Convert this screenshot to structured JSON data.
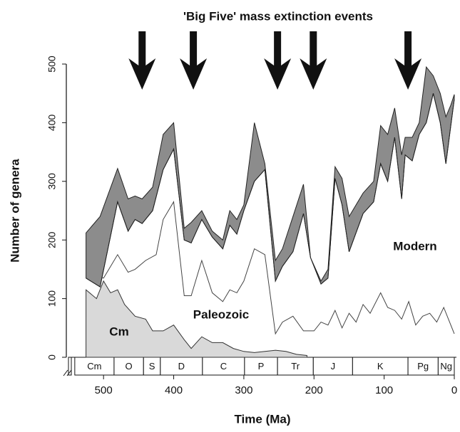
{
  "chart_data": {
    "type": "line",
    "title": "'Big Five' mass extinction events",
    "x_label": "Time (Ma)",
    "y_label": "Number of genera",
    "xlim": [
      550,
      0
    ],
    "ylim": [
      0,
      500
    ],
    "xticks": [
      500,
      400,
      300,
      200,
      100,
      0
    ],
    "yticks": [
      0,
      100,
      200,
      300,
      400,
      500
    ],
    "extinction_events": [
      445,
      372,
      252,
      201,
      66
    ],
    "periods": [
      {
        "name": "Cm",
        "start": 541,
        "end": 485
      },
      {
        "name": "O",
        "start": 485,
        "end": 443
      },
      {
        "name": "S",
        "start": 443,
        "end": 419
      },
      {
        "name": "D",
        "start": 419,
        "end": 359
      },
      {
        "name": "C",
        "start": 359,
        "end": 299
      },
      {
        "name": "P",
        "start": 299,
        "end": 252
      },
      {
        "name": "Tr",
        "start": 252,
        "end": 201
      },
      {
        "name": "J",
        "start": 201,
        "end": 145
      },
      {
        "name": "K",
        "start": 145,
        "end": 66
      },
      {
        "name": "Pg",
        "start": 66,
        "end": 23
      },
      {
        "name": "Ng",
        "start": 23,
        "end": 0
      }
    ],
    "series": [
      {
        "name": "Cm",
        "color": "#d9d9d9",
        "x": [
          525,
          510,
          500,
          490,
          480,
          470,
          455,
          440,
          430,
          415,
          400,
          385,
          375,
          360,
          345,
          330,
          315,
          300,
          285,
          270,
          255,
          240,
          225,
          210
        ],
        "values": [
          115,
          100,
          130,
          110,
          115,
          90,
          70,
          65,
          45,
          45,
          55,
          30,
          15,
          35,
          25,
          25,
          15,
          10,
          8,
          10,
          12,
          10,
          5,
          3
        ]
      },
      {
        "name": "Paleozoic",
        "color": "#444444",
        "x": [
          525,
          510,
          500,
          480,
          465,
          455,
          440,
          425,
          415,
          400,
          385,
          375,
          360,
          345,
          330,
          320,
          310,
          300,
          285,
          270,
          255,
          245,
          230,
          215,
          200,
          190,
          180,
          170,
          160,
          150,
          140,
          130,
          120,
          105,
          95,
          85,
          75,
          65,
          55,
          45,
          35,
          25,
          15,
          0
        ],
        "values": [
          135,
          140,
          135,
          175,
          145,
          150,
          165,
          175,
          235,
          265,
          105,
          105,
          165,
          110,
          95,
          115,
          110,
          130,
          185,
          175,
          40,
          60,
          70,
          45,
          45,
          60,
          55,
          80,
          50,
          75,
          60,
          90,
          75,
          110,
          85,
          80,
          65,
          95,
          55,
          70,
          75,
          60,
          85,
          40
        ]
      },
      {
        "name": "Modern",
        "color": "#8c8c8c",
        "x": [
          525,
          505,
          480,
          465,
          455,
          445,
          430,
          415,
          400,
          385,
          375,
          360,
          345,
          330,
          320,
          310,
          300,
          285,
          270,
          255,
          245,
          230,
          215,
          205,
          190,
          180,
          170,
          160,
          150,
          130,
          115,
          105,
          95,
          85,
          75,
          70,
          60,
          50,
          40,
          30,
          20,
          12,
          5,
          0
        ],
        "values": [
          212,
          240,
          322,
          270,
          275,
          270,
          290,
          380,
          400,
          220,
          230,
          250,
          215,
          200,
          250,
          235,
          260,
          400,
          330,
          165,
          185,
          240,
          295,
          170,
          130,
          150,
          325,
          305,
          240,
          280,
          300,
          395,
          380,
          425,
          345,
          375,
          375,
          400,
          495,
          480,
          450,
          410,
          430,
          448
        ],
        "lower": [
          135,
          120,
          265,
          215,
          235,
          228,
          250,
          320,
          355,
          200,
          195,
          235,
          205,
          185,
          225,
          210,
          250,
          300,
          320,
          130,
          155,
          180,
          245,
          170,
          125,
          135,
          305,
          260,
          180,
          245,
          265,
          330,
          300,
          375,
          270,
          345,
          335,
          380,
          400,
          450,
          400,
          330,
          395,
          440
        ]
      }
    ]
  }
}
